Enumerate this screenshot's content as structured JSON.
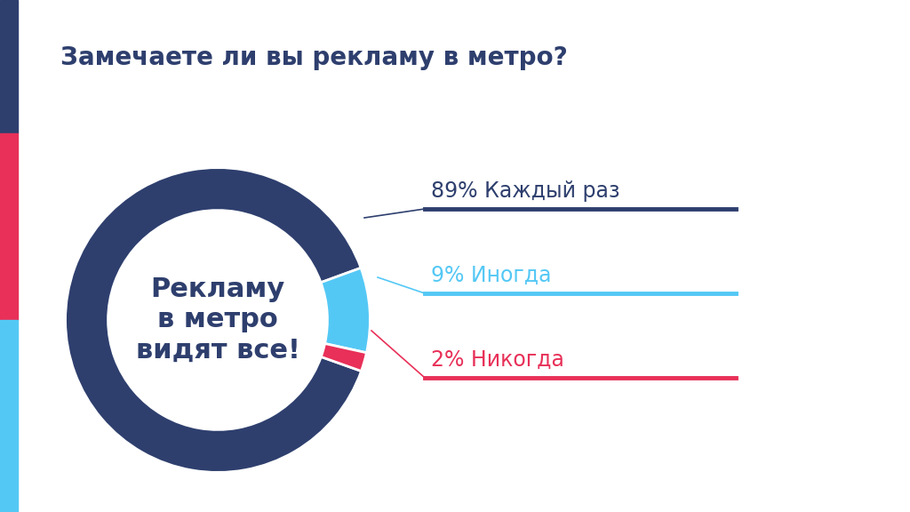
{
  "chart_data": {
    "type": "pie",
    "title": "Замечаете ли вы рекламу в метро?",
    "annotation": "Рекламу\nв метро\nвидят все!",
    "categories": [
      "Каждый раз",
      "Иногда",
      "Никогда"
    ],
    "values": [
      89,
      9,
      2
    ],
    "value_labels": [
      "89% Каждый раз",
      "9% Иногда",
      "2% Никогда"
    ],
    "colors": [
      "#2e3f6e",
      "#54c8f5",
      "#e83058"
    ]
  }
}
